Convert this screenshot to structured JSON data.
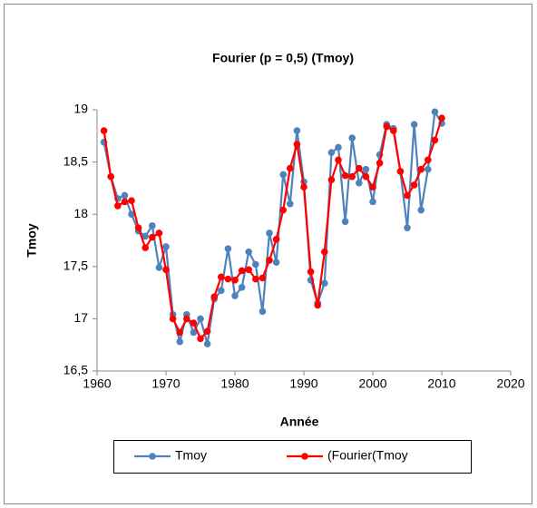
{
  "chart_data": {
    "type": "line",
    "title": "Fourier (p  = 0,5) (Tmoy)",
    "x_label": "Année",
    "y_label": "Tmoy",
    "x": [
      1961,
      1962,
      1963,
      1964,
      1965,
      1966,
      1967,
      1968,
      1969,
      1970,
      1971,
      1972,
      1973,
      1974,
      1975,
      1976,
      1977,
      1978,
      1979,
      1980,
      1981,
      1982,
      1983,
      1984,
      1985,
      1986,
      1987,
      1988,
      1989,
      1990,
      1991,
      1992,
      1993,
      1994,
      1995,
      1996,
      1997,
      1998,
      1999,
      2000,
      2001,
      2002,
      2003,
      2004,
      2005,
      2006,
      2007,
      2008,
      2009,
      2010
    ],
    "series": [
      {
        "name": "Tmoy",
        "color": "#4f81bd",
        "values": [
          18.69,
          18.36,
          18.15,
          18.18,
          18.0,
          17.84,
          17.79,
          17.89,
          17.49,
          17.69,
          17.04,
          16.78,
          17.04,
          16.87,
          17.0,
          16.76,
          17.19,
          17.27,
          17.67,
          17.22,
          17.3,
          17.64,
          17.52,
          17.07,
          17.82,
          17.54,
          18.38,
          18.1,
          18.8,
          18.31,
          17.37,
          17.15,
          17.34,
          18.59,
          18.64,
          17.93,
          18.73,
          18.3,
          18.43,
          18.12,
          18.57,
          18.86,
          18.82,
          18.41,
          17.87,
          18.86,
          18.04,
          18.43,
          18.98,
          18.87
        ]
      },
      {
        "name": "(Fourier(Tmoy",
        "color": "#ff0000",
        "values": [
          18.8,
          18.36,
          18.08,
          18.12,
          18.13,
          17.87,
          17.68,
          17.78,
          17.82,
          17.47,
          17.0,
          16.87,
          17.0,
          16.96,
          16.81,
          16.88,
          17.21,
          17.4,
          17.38,
          17.37,
          17.46,
          17.47,
          17.38,
          17.39,
          17.56,
          17.76,
          18.04,
          18.44,
          18.67,
          18.26,
          17.45,
          17.13,
          17.64,
          18.33,
          18.52,
          18.37,
          18.36,
          18.44,
          18.36,
          18.26,
          18.49,
          18.84,
          18.8,
          18.41,
          18.18,
          18.28,
          18.43,
          18.52,
          18.71,
          18.92
        ]
      }
    ],
    "xlim": [
      1960,
      2020
    ],
    "xticks": [
      1960,
      1970,
      1980,
      1990,
      2000,
      2010,
      2020
    ],
    "ylim": [
      16.5,
      19
    ],
    "yticks": [
      {
        "value": 16.5,
        "label": "16,5"
      },
      17,
      {
        "value": 17.5,
        "label": "17,5"
      },
      18,
      {
        "value": 18.5,
        "label": "18,5"
      },
      19
    ],
    "grid": false,
    "legend": "bottom"
  }
}
